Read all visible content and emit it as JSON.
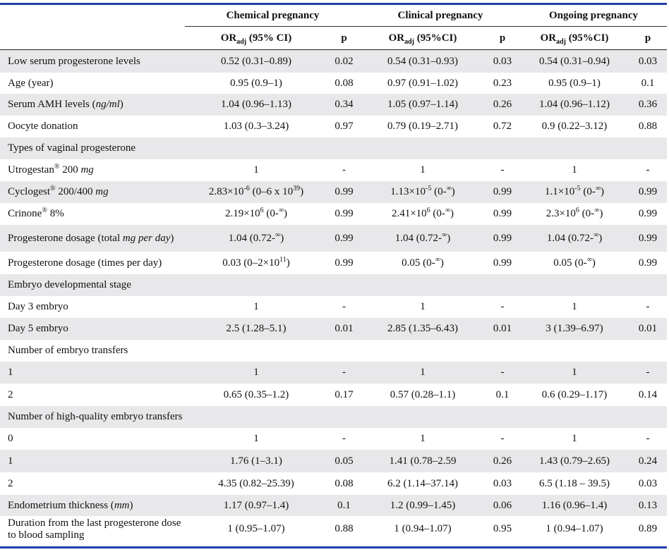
{
  "header": {
    "groups": [
      "Chemical pregnancy",
      "Clinical pregnancy",
      "Ongoing pregnancy"
    ],
    "or_prefix": "OR",
    "or_sub": "adj",
    "or_suffix_1": " (95% CI)",
    "or_suffix_2": " (95%CI)",
    "or_suffix_3": " (95%CI)",
    "p": "p"
  },
  "rows": [
    {
      "label": "Low serum progesterone levels",
      "c1": "0.52 (0.31–0.89)",
      "p1": "0.02",
      "c2": "0.54 (0.31–0.93)",
      "p2": "0.03",
      "c3": "0.54 (0.31–0.94)",
      "p3": "0.03"
    },
    {
      "label": "Age (year)",
      "c1": "0.95 (0.9–1)",
      "p1": "0.08",
      "c2": "0.97 (0.91–1.02)",
      "p2": "0.23",
      "c3": "0.95 (0.9–1)",
      "p3": "0.1"
    },
    {
      "label_pre": "Serum AMH levels (",
      "label_em": "ng/ml",
      "label_post": ")",
      "c1": "1.04 (0.96–1.13)",
      "p1": "0.34",
      "c2": "1.05 (0.97–1.14)",
      "p2": "0.26",
      "c3": "1.04 (0.96–1.12)",
      "p3": "0.36"
    },
    {
      "label": "Oocyte donation",
      "c1": "1.03 (0.3–3.24)",
      "p1": "0.97",
      "c2": "0.79 (0.19–2.71)",
      "p2": "0.72",
      "c3": "0.9 (0.22–3.12)",
      "p3": "0.88"
    },
    {
      "label": "Types of vaginal progesterone"
    },
    {
      "label_pre": "Utrogestan",
      "label_sup": "®",
      "label_mid": " 200 ",
      "label_em": "mg",
      "c1": "1",
      "p1": "-",
      "c2": "1",
      "p2": "-",
      "c3": "1",
      "p3": "-"
    },
    {
      "label_pre": "Cyclogest",
      "label_sup": "®",
      "label_mid": " 200/400 ",
      "label_em": "mg",
      "c1_a": "2.83×10",
      "c1_sup": "-6",
      "c1_b": " (0–6 x 10",
      "c1_sup2": "39",
      "c1_c": ")",
      "p1": "0.99",
      "c2_a": "1.13×10",
      "c2_sup": "-5",
      "c2_b": " (0-",
      "c2_sup2": "∞",
      "c2_c": ")",
      "p2": "0.99",
      "c3_a": "1.1×10",
      "c3_sup": "-5",
      "c3_b": " (0-",
      "c3_sup2": "∞",
      "c3_c": ")",
      "p3": "0.99"
    },
    {
      "label_pre": "Crinone",
      "label_sup": "®",
      "label_mid": " 8%",
      "c1_a": "2.19×10",
      "c1_sup": "6",
      "c1_b": " (0-",
      "c1_sup2": "∞",
      "c1_c": ")",
      "p1": "0.99",
      "c2_a": "2.41×10",
      "c2_sup": "6",
      "c2_b": " (0-",
      "c2_sup2": "∞",
      "c2_c": ")",
      "p2": "0.99",
      "c3_a": "2.3×10",
      "c3_sup": "6",
      "c3_b": " (0-",
      "c3_sup2": "∞",
      "c3_c": ")",
      "p3": "0.99"
    },
    {
      "label_pre": "Progesterone dosage (total ",
      "label_em": "mg per day",
      "label_post": ")",
      "c1_a": "1.04 (0.72-",
      "c1_sup": "∞",
      "c1_b": ")",
      "p1": "0.99",
      "c2_a": "1.04 (0.72-",
      "c2_sup": "∞",
      "c2_b": ")",
      "p2": "0.99",
      "c3_a": "1.04 (0.72-",
      "c3_sup": "∞",
      "c3_b": ")",
      "p3": "0.99"
    },
    {
      "label": "Progesterone dosage (times per day)",
      "c1_a": "0.03 (0–2×10",
      "c1_sup": "11",
      "c1_b": ")",
      "p1": "0.99",
      "c2_a": "0.05 (0-",
      "c2_sup": "∞",
      "c2_b": ")",
      "p2": "0.99",
      "c3_a": "0.05 (0-",
      "c3_sup": "∞",
      "c3_b": ")",
      "p3": "0.99"
    },
    {
      "label": "Embryo developmental stage"
    },
    {
      "label": "Day 3 embryo",
      "c1": "1",
      "p1": "-",
      "c2": "1",
      "p2": "-",
      "c3": "1",
      "p3": "-"
    },
    {
      "label": "Day 5 embryo",
      "c1": "2.5 (1.28–5.1)",
      "p1": "0.01",
      "c2": "2.85 (1.35–6.43)",
      "p2": "0.01",
      "c3": "3 (1.39–6.97)",
      "p3": "0.01"
    },
    {
      "label": "Number of embryo transfers"
    },
    {
      "label": "1",
      "c1": "1",
      "p1": "-",
      "c2": "1",
      "p2": "-",
      "c3": "1",
      "p3": "-"
    },
    {
      "label": "2",
      "c1": "0.65 (0.35–1.2)",
      "p1": "0.17",
      "c2": "0.57 (0.28–1.1)",
      "p2": "0.1",
      "c3": "0.6 (0.29–1.17)",
      "p3": "0.14"
    },
    {
      "label": "Number of high-quality embryo transfers"
    },
    {
      "label": "0",
      "c1": "1",
      "p1": "-",
      "c2": "1",
      "p2": "-",
      "c3": "1",
      "p3": "-"
    },
    {
      "label": "1",
      "c1": "1.76 (1–3.1)",
      "p1": "0.05",
      "c2": "1.41 (0.78–2.59",
      "p2": "0.26",
      "c3": "1.43 (0.79–2.65)",
      "p3": "0.24"
    },
    {
      "label": "2",
      "c1": "4.35 (0.82–25.39)",
      "p1": "0.08",
      "c2": "6.2 (1.14–37.14)",
      "p2": "0.03",
      "c3": "6.5 (1.18 – 39.5)",
      "p3": "0.03"
    },
    {
      "label_pre": "Endometrium thickness (",
      "label_em": "mm",
      "label_post": ")",
      "c1": "1.17 (0.97–1.4)",
      "p1": "0.1",
      "c2": "1.2 (0.99–1.45)",
      "p2": "0.06",
      "c3": "1.16 (0.96–1.4)",
      "p3": "0.13"
    },
    {
      "label": "Duration from the last progesterone dose to blood sampling",
      "c1": "1 (0.95–1.07)",
      "p1": "0.88",
      "c2": "1 (0.94–1.07)",
      "p2": "0.95",
      "c3": "1 (0.94–1.07)",
      "p3": "0.89"
    }
  ]
}
